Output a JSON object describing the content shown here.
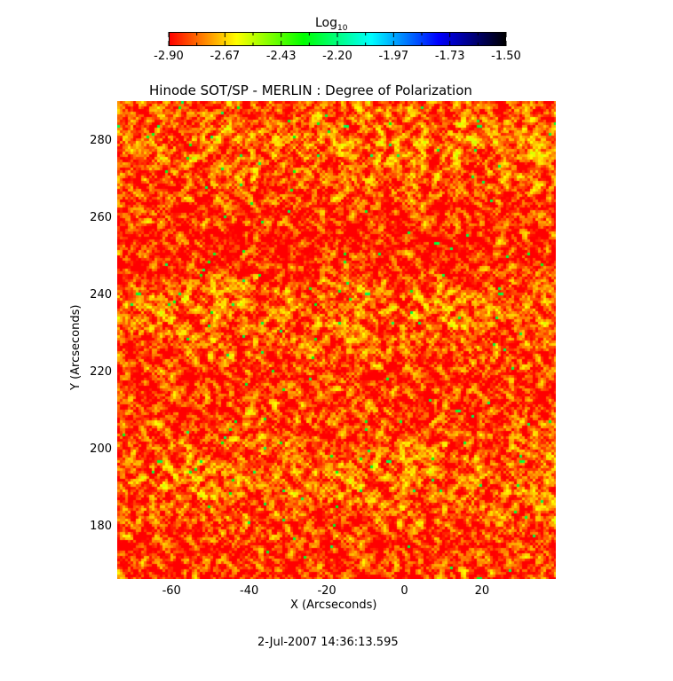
{
  "chart_data": {
    "type": "heatmap",
    "title": "Hinode SOT/SP - MERLIN : Degree of Polarization",
    "xlabel": "X (Arcseconds)",
    "ylabel": "Y (Arcseconds)",
    "xlim": [
      -74,
      39
    ],
    "ylim": [
      166.4,
      290.3
    ],
    "xticks": [
      -60,
      -40,
      -20,
      0,
      20
    ],
    "xtick_labels": [
      "-60",
      "-40",
      "-20",
      "0",
      "20"
    ],
    "yticks": [
      180,
      200,
      220,
      240,
      260,
      280
    ],
    "ytick_labels": [
      "180",
      "200",
      "220",
      "240",
      "260",
      "280"
    ],
    "colorbar": {
      "label": "Log",
      "label_sub": "10",
      "range": [
        -2.9,
        -1.5
      ],
      "tick_labels": [
        "-2.90",
        "-2.67",
        "-2.43",
        "-2.20",
        "-1.97",
        "-1.73",
        "-1.50"
      ],
      "colormap": [
        "#ff0000",
        "#ffff00",
        "#00ff00",
        "#00ffff",
        "#0000ff",
        "#000000"
      ]
    },
    "footer": "2-Jul-2007 14:36:13.595"
  }
}
